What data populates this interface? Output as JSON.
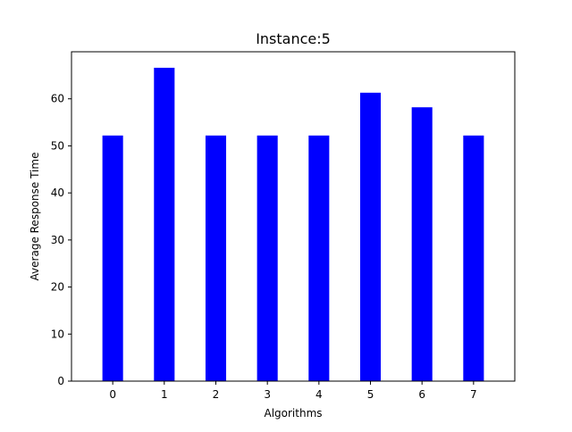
{
  "chart_data": {
    "type": "bar",
    "title": "Instance:5",
    "xlabel": "Algorithms",
    "ylabel": "Average Response Time",
    "categories": [
      "0",
      "1",
      "2",
      "3",
      "4",
      "5",
      "6",
      "7"
    ],
    "values": [
      52.2,
      66.6,
      52.2,
      52.2,
      52.2,
      61.3,
      58.2,
      52.2
    ],
    "ylim": [
      0,
      70
    ],
    "yticks": [
      "0",
      "10",
      "20",
      "30",
      "40",
      "50",
      "60"
    ],
    "grid": false,
    "legend": "none",
    "bar_color": "#0000ff"
  }
}
